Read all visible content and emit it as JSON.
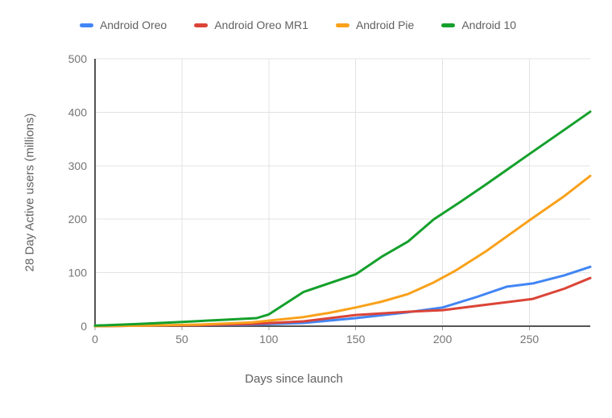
{
  "chart_data": {
    "type": "line",
    "title": "",
    "xlabel": "Days since launch",
    "ylabel": "28 Day Active users (millions)",
    "xlim": [
      0,
      285
    ],
    "ylim": [
      0,
      500
    ],
    "xticks": [
      0,
      50,
      100,
      150,
      200,
      250
    ],
    "yticks": [
      0,
      100,
      200,
      300,
      400,
      500
    ],
    "grid": true,
    "legend_position": "top",
    "series": [
      {
        "name": "Android Oreo",
        "color": "#4285F4",
        "points": [
          [
            0,
            0
          ],
          [
            30,
            1
          ],
          [
            60,
            2
          ],
          [
            90,
            3
          ],
          [
            120,
            6
          ],
          [
            150,
            15
          ],
          [
            180,
            26
          ],
          [
            200,
            35
          ],
          [
            220,
            55
          ],
          [
            237,
            74
          ],
          [
            252,
            80
          ],
          [
            270,
            95
          ],
          [
            285,
            111
          ]
        ]
      },
      {
        "name": "Android Oreo MR1",
        "color": "#DB4437",
        "points": [
          [
            0,
            0
          ],
          [
            30,
            1
          ],
          [
            60,
            2
          ],
          [
            90,
            4
          ],
          [
            120,
            9
          ],
          [
            150,
            21
          ],
          [
            180,
            27
          ],
          [
            200,
            30
          ],
          [
            225,
            40
          ],
          [
            252,
            51
          ],
          [
            270,
            70
          ],
          [
            285,
            90
          ]
        ]
      },
      {
        "name": "Android Pie",
        "color": "#F9A11B",
        "points": [
          [
            0,
            0
          ],
          [
            30,
            1
          ],
          [
            60,
            3
          ],
          [
            90,
            7
          ],
          [
            105,
            12
          ],
          [
            120,
            17
          ],
          [
            135,
            25
          ],
          [
            150,
            35
          ],
          [
            165,
            46
          ],
          [
            180,
            60
          ],
          [
            195,
            82
          ],
          [
            207,
            103
          ],
          [
            225,
            140
          ],
          [
            250,
            198
          ],
          [
            270,
            243
          ],
          [
            285,
            281
          ]
        ]
      },
      {
        "name": "Android 10",
        "color": "#15A02C",
        "points": [
          [
            0,
            1
          ],
          [
            25,
            4
          ],
          [
            50,
            8
          ],
          [
            75,
            12
          ],
          [
            93,
            15
          ],
          [
            100,
            22
          ],
          [
            120,
            64
          ],
          [
            150,
            97
          ],
          [
            165,
            130
          ],
          [
            180,
            158
          ],
          [
            195,
            200
          ],
          [
            210,
            232
          ],
          [
            225,
            265
          ],
          [
            250,
            322
          ],
          [
            270,
            367
          ],
          [
            285,
            401
          ]
        ]
      }
    ]
  }
}
